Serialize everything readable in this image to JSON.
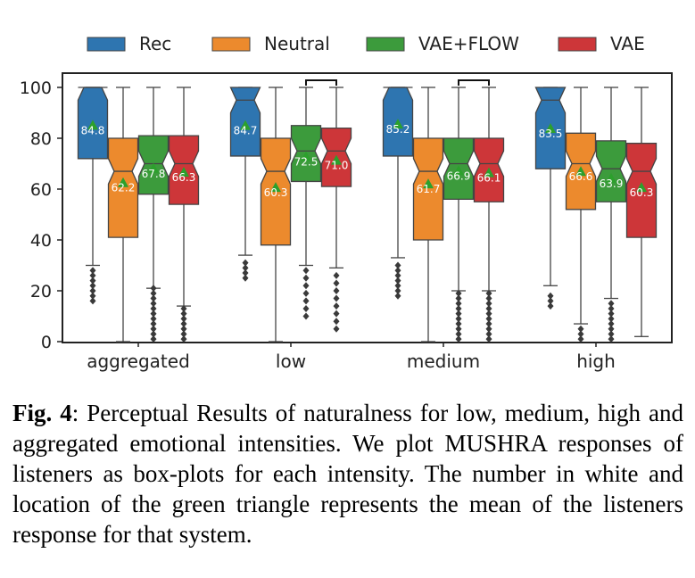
{
  "chart_data": {
    "type": "boxplot",
    "ylim": [
      0,
      100
    ],
    "yticks": [
      0,
      20,
      40,
      60,
      80,
      100
    ],
    "categories": [
      "aggregated",
      "low",
      "medium",
      "high"
    ],
    "legend_position": "top",
    "series": [
      {
        "name": "Rec",
        "color": "#2e75b0"
      },
      {
        "name": "Neutral",
        "color": "#ec8a2d"
      },
      {
        "name": "VAE+FLOW",
        "color": "#3c9b3c"
      },
      {
        "name": "VAE",
        "color": "#cd3639"
      }
    ],
    "boxes": [
      [
        {
          "q1": 72,
          "median": 100,
          "q3": 100,
          "wlo": 30,
          "whi": 100,
          "mean": 84.8,
          "mean_label": "84.8",
          "fliers": [
            16,
            18,
            20,
            22,
            24,
            26,
            28
          ]
        },
        {
          "q1": 41,
          "median": 67,
          "q3": 80,
          "wlo": 0,
          "whi": 100,
          "mean": 62.2,
          "mean_label": "62.2",
          "fliers": []
        },
        {
          "q1": 58,
          "median": 70,
          "q3": 81,
          "wlo": 21,
          "whi": 100,
          "mean": 67.8,
          "mean_label": "67.8",
          "fliers": [
            1,
            3,
            5,
            7,
            9,
            11,
            13,
            15,
            17,
            19,
            21
          ]
        },
        {
          "q1": 54,
          "median": 70,
          "q3": 81,
          "wlo": 14,
          "whi": 100,
          "mean": 66.3,
          "mean_label": "66.3",
          "fliers": [
            1,
            3,
            5,
            7,
            9,
            11,
            13
          ]
        }
      ],
      [
        {
          "q1": 73,
          "median": 95,
          "q3": 100,
          "wlo": 34,
          "whi": 100,
          "mean": 84.7,
          "mean_label": "84.7",
          "fliers": [
            25,
            27,
            29,
            31
          ]
        },
        {
          "q1": 38,
          "median": 67,
          "q3": 80,
          "wlo": 0,
          "whi": 100,
          "mean": 60.3,
          "mean_label": "60.3",
          "fliers": []
        },
        {
          "q1": 63,
          "median": 75,
          "q3": 85,
          "wlo": 30,
          "whi": 100,
          "mean": 72.5,
          "mean_label": "72.5",
          "fliers": [
            10,
            13,
            16,
            19,
            22,
            25,
            28
          ]
        },
        {
          "q1": 61,
          "median": 75,
          "q3": 84,
          "wlo": 29,
          "whi": 100,
          "mean": 71.0,
          "mean_label": "71.0",
          "fliers": [
            5,
            8,
            11,
            14,
            17,
            20,
            23,
            26
          ]
        }
      ],
      [
        {
          "q1": 73,
          "median": 100,
          "q3": 100,
          "wlo": 33,
          "whi": 100,
          "mean": 85.2,
          "mean_label": "85.2",
          "fliers": [
            18,
            20,
            22,
            24,
            26,
            28,
            30
          ]
        },
        {
          "q1": 40,
          "median": 67,
          "q3": 80,
          "wlo": 0,
          "whi": 100,
          "mean": 61.7,
          "mean_label": "61.7",
          "fliers": []
        },
        {
          "q1": 56,
          "median": 70,
          "q3": 80,
          "wlo": 20,
          "whi": 100,
          "mean": 66.9,
          "mean_label": "66.9",
          "fliers": [
            1,
            3,
            5,
            7,
            9,
            11,
            13,
            15,
            17,
            19
          ]
        },
        {
          "q1": 55,
          "median": 70,
          "q3": 80,
          "wlo": 20,
          "whi": 100,
          "mean": 66.1,
          "mean_label": "66.1",
          "fliers": [
            1,
            3,
            5,
            7,
            9,
            11,
            13,
            15,
            17,
            19
          ]
        }
      ],
      [
        {
          "q1": 68,
          "median": 95,
          "q3": 100,
          "wlo": 22,
          "whi": 100,
          "mean": 83.5,
          "mean_label": "83.5",
          "fliers": [
            14,
            16,
            18
          ]
        },
        {
          "q1": 52,
          "median": 70,
          "q3": 82,
          "wlo": 7,
          "whi": 100,
          "mean": 66.6,
          "mean_label": "66.6",
          "fliers": [
            1,
            3,
            5
          ]
        },
        {
          "q1": 55,
          "median": 68,
          "q3": 79,
          "wlo": 17,
          "whi": 100,
          "mean": 63.9,
          "mean_label": "63.9",
          "fliers": [
            1,
            3,
            5,
            7,
            9,
            11,
            13,
            15
          ]
        },
        {
          "q1": 41,
          "median": 67,
          "q3": 78,
          "wlo": 2,
          "whi": 100,
          "mean": 60.3,
          "mean_label": "60.3",
          "fliers": []
        }
      ]
    ],
    "brackets": [
      {
        "group": 1,
        "from": 2,
        "to": 3
      },
      {
        "group": 2,
        "from": 2,
        "to": 3
      }
    ]
  },
  "caption": {
    "label": "Fig. 4",
    "text": ":  Perceptual Results of naturalness for low, medium, high and aggregated emotional intensities. We plot MUSHRA responses of listeners as box-plots for each intensity.  The number in white and location of the green triangle represents the mean of the listeners response for that system."
  }
}
